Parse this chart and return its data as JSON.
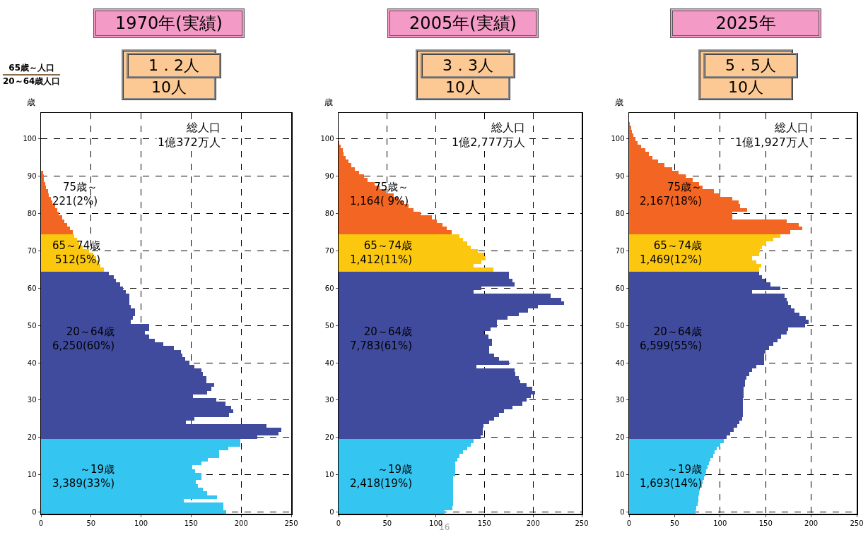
{
  "chart_data": [
    {
      "type": "bar",
      "orientation": "horizontal",
      "title": "1970年(実績)",
      "subtitle": "1．2人\n10人",
      "ylabel": "歳",
      "grid": true,
      "categories": [
        null,
        null,
        null,
        null,
        "100",
        null,
        null,
        null,
        null,
        null,
        null,
        null,
        null,
        null,
        "90",
        null,
        null,
        null,
        null,
        null,
        null,
        null,
        null,
        null,
        "80",
        null,
        null,
        null,
        null,
        null,
        null,
        null,
        null,
        null,
        "70",
        null,
        null,
        null,
        null,
        null,
        null,
        null,
        null,
        null,
        "60",
        null,
        null,
        null,
        null,
        null,
        null,
        null,
        null,
        null,
        "50",
        null,
        null,
        null,
        null,
        null,
        null,
        null,
        null,
        null,
        "40",
        null,
        null,
        null,
        null,
        null,
        null,
        null,
        null,
        null,
        "30",
        null,
        null,
        null,
        null,
        null,
        null,
        null,
        null,
        null,
        "20",
        null,
        null,
        null,
        null,
        null,
        null,
        null,
        null,
        null,
        "10",
        null,
        null,
        null,
        null,
        null,
        null,
        null,
        null,
        null,
        "0"
      ],
      "values": [
        null,
        null,
        null,
        null,
        null,
        null,
        null,
        null,
        null,
        null,
        null,
        null,
        null,
        2,
        3,
        3,
        4,
        5,
        7,
        8,
        10,
        11,
        14,
        16,
        18,
        21,
        23,
        26,
        29,
        32,
        33,
        36,
        38,
        42,
        48,
        52,
        55,
        58,
        59,
        63,
        68,
        73,
        75,
        79,
        82,
        85,
        88,
        88,
        88,
        90,
        94,
        94,
        92,
        90,
        108,
        108,
        104,
        108,
        114,
        122,
        133,
        140,
        141,
        144,
        148,
        153,
        160,
        162,
        165,
        165,
        173,
        170,
        166,
        152,
        175,
        184,
        190,
        192,
        188,
        153,
        145,
        225,
        240,
        237,
        216,
        199,
        199,
        187,
        178,
        178,
        167,
        160,
        151,
        154,
        160,
        160,
        155,
        157,
        162,
        166,
        176,
        143,
        182,
        182,
        185
      ],
      "colors": [
        "#f26522",
        "#f26522",
        "#f26522",
        "#f26522",
        "#f26522",
        "#f26522",
        "#f26522",
        "#f26522",
        "#f26522",
        "#f26522",
        "#f26522",
        "#f26522",
        "#f26522",
        "#f26522",
        "#f26522",
        "#f26522",
        "#f26522",
        "#f26522",
        "#f26522",
        "#f26522",
        "#f26522",
        "#f26522",
        "#f26522",
        "#f26522",
        "#f26522",
        "#f26522",
        "#f26522",
        "#f26522",
        "#f26522",
        "#f26522",
        "#fcc80f",
        "#fcc80f",
        "#fcc80f",
        "#fcc80f",
        "#fcc80f",
        "#fcc80f",
        "#fcc80f",
        "#fcc80f",
        "#fcc80f",
        "#fcc80f",
        "#414b9d",
        "#414b9d",
        "#414b9d",
        "#414b9d",
        "#414b9d",
        "#414b9d",
        "#414b9d",
        "#414b9d",
        "#414b9d",
        "#414b9d",
        "#414b9d",
        "#414b9d",
        "#414b9d",
        "#414b9d",
        "#414b9d",
        "#414b9d",
        "#414b9d",
        "#414b9d",
        "#414b9d",
        "#414b9d",
        "#414b9d",
        "#414b9d",
        "#414b9d",
        "#414b9d",
        "#414b9d",
        "#414b9d",
        "#414b9d",
        "#414b9d",
        "#414b9d",
        "#414b9d",
        "#414b9d",
        "#414b9d",
        "#414b9d",
        "#414b9d",
        "#414b9d",
        "#414b9d",
        "#414b9d",
        "#414b9d",
        "#414b9d",
        "#414b9d",
        "#414b9d",
        "#414b9d",
        "#414b9d",
        "#414b9d",
        "#414b9d",
        "#35c5f1",
        "#35c5f1",
        "#35c5f1",
        "#35c5f1",
        "#35c5f1",
        "#35c5f1",
        "#35c5f1",
        "#35c5f1",
        "#35c5f1",
        "#35c5f1",
        "#35c5f1",
        "#35c5f1",
        "#35c5f1",
        "#35c5f1",
        "#35c5f1",
        "#35c5f1",
        "#35c5f1",
        "#35c5f1",
        "#35c5f1",
        "#35c5f1"
      ],
      "xlim": [
        0,
        250
      ],
      "xticks": [
        0,
        50,
        100,
        150,
        200,
        250
      ],
      "annotations": [
        "総人口\n1億372万人",
        "75歳～\n221(2%)",
        "65～74歳\n512(5%)",
        "20～64歳\n6,250(60%)",
        "～19歳\n3,389(33%)",
        "65歳～人口\n20～64歳人口"
      ]
    },
    {
      "type": "bar",
      "orientation": "horizontal",
      "title": "2005年(実績)",
      "subtitle": "3．3人\n10人",
      "ylabel": "歳",
      "grid": true,
      "categories": [
        null,
        null,
        null,
        null,
        "100",
        null,
        null,
        null,
        null,
        null,
        null,
        null,
        null,
        null,
        "90",
        null,
        null,
        null,
        null,
        null,
        null,
        null,
        null,
        null,
        "80",
        null,
        null,
        null,
        null,
        null,
        null,
        null,
        null,
        null,
        "70",
        null,
        null,
        null,
        null,
        null,
        null,
        null,
        null,
        null,
        "60",
        null,
        null,
        null,
        null,
        null,
        null,
        null,
        null,
        null,
        "50",
        null,
        null,
        null,
        null,
        null,
        null,
        null,
        null,
        null,
        "40",
        null,
        null,
        null,
        null,
        null,
        null,
        null,
        null,
        null,
        "30",
        null,
        null,
        null,
        null,
        null,
        null,
        null,
        null,
        null,
        "20",
        null,
        null,
        null,
        null,
        null,
        null,
        null,
        null,
        null,
        "10",
        null,
        null,
        null,
        null,
        null,
        null,
        null,
        null,
        null,
        "0"
      ],
      "values": [
        null,
        null,
        null,
        null,
        null,
        1,
        2,
        4,
        5,
        7,
        10,
        13,
        17,
        21,
        26,
        30,
        37,
        42,
        49,
        57,
        62,
        66,
        72,
        77,
        84,
        96,
        101,
        107,
        111,
        116,
        124,
        128,
        132,
        136,
        143,
        150,
        151,
        147,
        139,
        159,
        175,
        175,
        179,
        181,
        147,
        139,
        218,
        229,
        232,
        205,
        195,
        185,
        174,
        163,
        163,
        156,
        150,
        154,
        158,
        158,
        155,
        155,
        160,
        165,
        175,
        142,
        181,
        182,
        185,
        187,
        193,
        199,
        202,
        198,
        193,
        189,
        179,
        170,
        165,
        160,
        155,
        149,
        148,
        148,
        146,
        139,
        136,
        132,
        128,
        124,
        122,
        120,
        120,
        120,
        120,
        118,
        118,
        118,
        118,
        118,
        118,
        118,
        118,
        117,
        109
      ],
      "colors": [
        "#f26522",
        "#f26522",
        "#f26522",
        "#f26522",
        "#f26522",
        "#f26522",
        "#f26522",
        "#f26522",
        "#f26522",
        "#f26522",
        "#f26522",
        "#f26522",
        "#f26522",
        "#f26522",
        "#f26522",
        "#f26522",
        "#f26522",
        "#f26522",
        "#f26522",
        "#f26522",
        "#f26522",
        "#f26522",
        "#f26522",
        "#f26522",
        "#f26522",
        "#f26522",
        "#f26522",
        "#f26522",
        "#f26522",
        "#f26522",
        "#fcc80f",
        "#fcc80f",
        "#fcc80f",
        "#fcc80f",
        "#fcc80f",
        "#fcc80f",
        "#fcc80f",
        "#fcc80f",
        "#fcc80f",
        "#fcc80f",
        "#414b9d",
        "#414b9d",
        "#414b9d",
        "#414b9d",
        "#414b9d",
        "#414b9d",
        "#414b9d",
        "#414b9d",
        "#414b9d",
        "#414b9d",
        "#414b9d",
        "#414b9d",
        "#414b9d",
        "#414b9d",
        "#414b9d",
        "#414b9d",
        "#414b9d",
        "#414b9d",
        "#414b9d",
        "#414b9d",
        "#414b9d",
        "#414b9d",
        "#414b9d",
        "#414b9d",
        "#414b9d",
        "#414b9d",
        "#414b9d",
        "#414b9d",
        "#414b9d",
        "#414b9d",
        "#414b9d",
        "#414b9d",
        "#414b9d",
        "#414b9d",
        "#414b9d",
        "#414b9d",
        "#414b9d",
        "#414b9d",
        "#414b9d",
        "#414b9d",
        "#414b9d",
        "#414b9d",
        "#414b9d",
        "#414b9d",
        "#414b9d",
        "#35c5f1",
        "#35c5f1",
        "#35c5f1",
        "#35c5f1",
        "#35c5f1",
        "#35c5f1",
        "#35c5f1",
        "#35c5f1",
        "#35c5f1",
        "#35c5f1",
        "#35c5f1",
        "#35c5f1",
        "#35c5f1",
        "#35c5f1",
        "#35c5f1",
        "#35c5f1",
        "#35c5f1",
        "#35c5f1",
        "#35c5f1",
        "#35c5f1"
      ],
      "xlim": [
        0,
        250
      ],
      "xticks": [
        0,
        50,
        100,
        150,
        200,
        250
      ],
      "annotations": [
        "総人口\n1億2,777万人",
        "75歳～\n1,164( 9%)",
        "65～74歳\n1,412(11%)",
        "20～64歳\n7,783(61%)",
        "～19歳\n2,418(19%)",
        "16"
      ]
    },
    {
      "type": "bar",
      "orientation": "horizontal",
      "title": "2025年",
      "subtitle": "5．5人\n10人",
      "ylabel": "歳",
      "grid": true,
      "categories": [
        null,
        null,
        null,
        null,
        "100",
        null,
        null,
        null,
        null,
        null,
        null,
        null,
        null,
        null,
        "90",
        null,
        null,
        null,
        null,
        null,
        null,
        null,
        null,
        null,
        "80",
        null,
        null,
        null,
        null,
        null,
        null,
        null,
        null,
        null,
        "70",
        null,
        null,
        null,
        null,
        null,
        null,
        null,
        null,
        null,
        "60",
        null,
        null,
        null,
        null,
        null,
        null,
        null,
        null,
        null,
        "50",
        null,
        null,
        null,
        null,
        null,
        null,
        null,
        null,
        null,
        "40",
        null,
        null,
        null,
        null,
        null,
        null,
        null,
        null,
        null,
        "30",
        null,
        null,
        null,
        null,
        null,
        null,
        null,
        null,
        null,
        "20",
        null,
        null,
        null,
        null,
        null,
        null,
        null,
        null,
        null,
        "10",
        null,
        null,
        null,
        null,
        null,
        null,
        null,
        null,
        null,
        "0"
      ],
      "values": [
        1,
        2,
        3,
        5,
        7,
        9,
        13,
        18,
        22,
        26,
        32,
        39,
        47,
        54,
        62,
        70,
        77,
        81,
        93,
        100,
        113,
        120,
        122,
        130,
        113,
        113,
        173,
        186,
        190,
        177,
        166,
        158,
        151,
        146,
        144,
        143,
        135,
        140,
        145,
        143,
        143,
        146,
        150,
        155,
        166,
        135,
        171,
        173,
        175,
        178,
        182,
        187,
        194,
        197,
        193,
        175,
        173,
        167,
        163,
        158,
        154,
        150,
        148,
        148,
        148,
        140,
        135,
        132,
        129,
        127,
        127,
        126,
        126,
        126,
        125,
        125,
        125,
        125,
        125,
        124,
        121,
        119,
        115,
        111,
        107,
        104,
        100,
        96,
        94,
        92,
        89,
        88,
        86,
        85,
        84,
        82,
        81,
        80,
        78,
        77,
        76,
        76,
        75,
        74,
        73
      ],
      "colors": [
        "#f26522",
        "#f26522",
        "#f26522",
        "#f26522",
        "#f26522",
        "#f26522",
        "#f26522",
        "#f26522",
        "#f26522",
        "#f26522",
        "#f26522",
        "#f26522",
        "#f26522",
        "#f26522",
        "#f26522",
        "#f26522",
        "#f26522",
        "#f26522",
        "#f26522",
        "#f26522",
        "#f26522",
        "#f26522",
        "#f26522",
        "#f26522",
        "#f26522",
        "#f26522",
        "#f26522",
        "#f26522",
        "#f26522",
        "#f26522",
        "#fcc80f",
        "#fcc80f",
        "#fcc80f",
        "#fcc80f",
        "#fcc80f",
        "#fcc80f",
        "#fcc80f",
        "#fcc80f",
        "#fcc80f",
        "#fcc80f",
        "#414b9d",
        "#414b9d",
        "#414b9d",
        "#414b9d",
        "#414b9d",
        "#414b9d",
        "#414b9d",
        "#414b9d",
        "#414b9d",
        "#414b9d",
        "#414b9d",
        "#414b9d",
        "#414b9d",
        "#414b9d",
        "#414b9d",
        "#414b9d",
        "#414b9d",
        "#414b9d",
        "#414b9d",
        "#414b9d",
        "#414b9d",
        "#414b9d",
        "#414b9d",
        "#414b9d",
        "#414b9d",
        "#414b9d",
        "#414b9d",
        "#414b9d",
        "#414b9d",
        "#414b9d",
        "#414b9d",
        "#414b9d",
        "#414b9d",
        "#414b9d",
        "#414b9d",
        "#414b9d",
        "#414b9d",
        "#414b9d",
        "#414b9d",
        "#414b9d",
        "#414b9d",
        "#414b9d",
        "#414b9d",
        "#414b9d",
        "#414b9d",
        "#35c5f1",
        "#35c5f1",
        "#35c5f1",
        "#35c5f1",
        "#35c5f1",
        "#35c5f1",
        "#35c5f1",
        "#35c5f1",
        "#35c5f1",
        "#35c5f1",
        "#35c5f1",
        "#35c5f1",
        "#35c5f1",
        "#35c5f1",
        "#35c5f1",
        "#35c5f1",
        "#35c5f1",
        "#35c5f1",
        "#35c5f1",
        "#35c5f1"
      ],
      "xlim": [
        0,
        250
      ],
      "xticks": [
        0,
        50,
        100,
        150,
        200,
        250
      ],
      "annotations": [
        "総人口\n1億1,927万人",
        "75歳～\n2,167(18%)",
        "65～74歳\n1,469(12%)",
        "20～64歳\n6,599(55%)",
        "～19歳\n1,693(14%)"
      ]
    }
  ]
}
